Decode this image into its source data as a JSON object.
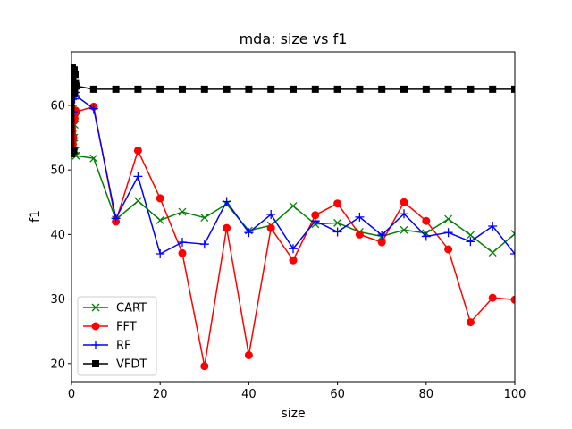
{
  "chart_data": {
    "type": "line",
    "title": "mda: size vs f1",
    "xlabel": "size",
    "ylabel": "f1",
    "xlim": [
      0,
      100
    ],
    "ylim": [
      17.2,
      68.3
    ],
    "xticks": [
      0,
      20,
      40,
      60,
      80,
      100
    ],
    "yticks": [
      20,
      30,
      40,
      50,
      60
    ],
    "grid": false,
    "legend_position": "lower-left",
    "series": [
      {
        "name": "CART",
        "color": "#008000",
        "marker": "x",
        "x": [
          0.1,
          0.2,
          0.3,
          0.4,
          0.5,
          0.6,
          0.7,
          0.8,
          0.9,
          1,
          5,
          10,
          15,
          20,
          25,
          30,
          35,
          40,
          45,
          50,
          55,
          60,
          65,
          70,
          75,
          80,
          85,
          90,
          95,
          100
        ],
        "y": [
          56,
          57,
          55,
          54,
          53,
          55,
          57,
          58,
          53,
          52.2,
          51.8,
          42.3,
          45.2,
          42.2,
          43.5,
          42.6,
          44.7,
          40.6,
          41.4,
          44.4,
          41.6,
          41.8,
          40.4,
          39.7,
          40.7,
          40.2,
          42.4,
          39.9,
          37.2,
          40.1
        ]
      },
      {
        "name": "FFT",
        "color": "#ff0000",
        "marker": "o",
        "x": [
          0.1,
          0.2,
          0.3,
          0.4,
          0.5,
          0.6,
          0.7,
          0.8,
          0.9,
          1,
          5,
          10,
          15,
          20,
          25,
          30,
          35,
          40,
          45,
          50,
          55,
          60,
          65,
          70,
          75,
          80,
          85,
          90,
          95,
          100
        ],
        "y": [
          59.5,
          56,
          54,
          55,
          53.2,
          57.6,
          58,
          59,
          59.2,
          59,
          59.8,
          42,
          53,
          45.6,
          37.1,
          19.6,
          41,
          21.3,
          41,
          36,
          43,
          44.8,
          40,
          38.8,
          45,
          42.1,
          37.7,
          26.4,
          30.2,
          29.9
        ]
      },
      {
        "name": "RF",
        "color": "#0000ff",
        "marker": "+",
        "x": [
          0.1,
          0.2,
          0.3,
          0.4,
          0.5,
          0.6,
          0.7,
          0.8,
          0.9,
          1,
          5,
          10,
          15,
          20,
          25,
          30,
          35,
          40,
          45,
          50,
          55,
          60,
          65,
          70,
          75,
          80,
          85,
          90,
          95,
          100
        ],
        "y": [
          62,
          60,
          61,
          59,
          63,
          62,
          61,
          63,
          62,
          61.5,
          59.5,
          42.5,
          49,
          37,
          38.8,
          38.5,
          45.1,
          40.3,
          43.1,
          37.8,
          42.1,
          40.4,
          42.7,
          39.9,
          43.2,
          39.7,
          40.3,
          38.9,
          41.3,
          37
        ]
      },
      {
        "name": "VFDT",
        "color": "#000000",
        "marker": "s",
        "x": [
          0.1,
          0.2,
          0.3,
          0.4,
          0.5,
          0.6,
          0.7,
          0.8,
          0.9,
          1,
          5,
          10,
          15,
          20,
          25,
          30,
          35,
          40,
          45,
          50,
          55,
          60,
          65,
          70,
          75,
          80,
          85,
          90,
          95,
          100
        ],
        "y": [
          52.5,
          65.8,
          64,
          65.2,
          53,
          65.5,
          62,
          64.8,
          63.5,
          63,
          62.5,
          62.5,
          62.5,
          62.5,
          62.5,
          62.5,
          62.5,
          62.5,
          62.5,
          62.5,
          62.5,
          62.5,
          62.5,
          62.5,
          62.5,
          62.5,
          62.5,
          62.5,
          62.5,
          62.5
        ]
      }
    ]
  }
}
